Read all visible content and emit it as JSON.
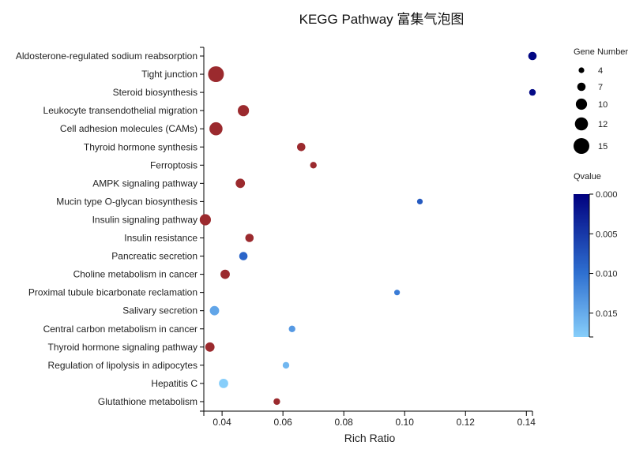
{
  "chart_data": {
    "type": "scatter",
    "title": "KEGG Pathway 富集气泡图",
    "xlabel": "Rich Ratio",
    "xlim": [
      0.034,
      0.142
    ],
    "xticks": [
      0.04,
      0.06,
      0.08,
      0.1,
      0.12,
      0.14
    ],
    "xtick_labels": [
      "0.04",
      "0.06",
      "0.08",
      "0.10",
      "0.12",
      "0.14"
    ],
    "points": [
      {
        "term": "Aldosterone-regulated sodium reabsorption",
        "rich_ratio": 0.142,
        "gene_number": 7,
        "qvalue": 0.0005
      },
      {
        "term": "Tight junction",
        "rich_ratio": 0.038,
        "gene_number": 15,
        "qvalue": 0.045
      },
      {
        "term": "Steroid biosynthesis",
        "rich_ratio": 0.142,
        "gene_number": 5,
        "qvalue": 0.001
      },
      {
        "term": "Leukocyte transendothelial migration",
        "rich_ratio": 0.047,
        "gene_number": 10,
        "qvalue": 0.045
      },
      {
        "term": "Cell adhesion molecules (CAMs)",
        "rich_ratio": 0.038,
        "gene_number": 12,
        "qvalue": 0.045
      },
      {
        "term": "Thyroid hormone synthesis",
        "rich_ratio": 0.066,
        "gene_number": 7,
        "qvalue": 0.045
      },
      {
        "term": "Ferroptosis",
        "rich_ratio": 0.07,
        "gene_number": 5,
        "qvalue": 0.045
      },
      {
        "term": "AMPK signaling pathway",
        "rich_ratio": 0.046,
        "gene_number": 8,
        "qvalue": 0.045
      },
      {
        "term": "Mucin type O-glycan biosynthesis",
        "rich_ratio": 0.105,
        "gene_number": 4,
        "qvalue": 0.008
      },
      {
        "term": "Insulin signaling pathway",
        "rich_ratio": 0.0345,
        "gene_number": 10,
        "qvalue": 0.045
      },
      {
        "term": "Insulin resistance",
        "rich_ratio": 0.049,
        "gene_number": 7,
        "qvalue": 0.045
      },
      {
        "term": "Pancreatic secretion",
        "rich_ratio": 0.047,
        "gene_number": 7,
        "qvalue": 0.009
      },
      {
        "term": "Choline metabolism in cancer",
        "rich_ratio": 0.041,
        "gene_number": 8,
        "qvalue": 0.045
      },
      {
        "term": "Proximal tubule bicarbonate reclamation",
        "rich_ratio": 0.0975,
        "gene_number": 4,
        "qvalue": 0.011
      },
      {
        "term": "Salivary secretion",
        "rich_ratio": 0.0375,
        "gene_number": 8,
        "qvalue": 0.0145
      },
      {
        "term": "Central carbon metabolism in cancer",
        "rich_ratio": 0.063,
        "gene_number": 5,
        "qvalue": 0.0135
      },
      {
        "term": "Thyroid hormone signaling pathway",
        "rich_ratio": 0.036,
        "gene_number": 8,
        "qvalue": 0.045
      },
      {
        "term": "Regulation of lipolysis in adipocytes",
        "rich_ratio": 0.061,
        "gene_number": 5,
        "qvalue": 0.016
      },
      {
        "term": "Hepatitis C",
        "rich_ratio": 0.0405,
        "gene_number": 8,
        "qvalue": 0.018
      },
      {
        "term": "Glutathione metabolism",
        "rich_ratio": 0.058,
        "gene_number": 5,
        "qvalue": 0.045
      }
    ],
    "size_legend": {
      "title": "Gene Number",
      "entries": [
        {
          "label": "4",
          "value": 4
        },
        {
          "label": "7",
          "value": 7
        },
        {
          "label": "10",
          "value": 10
        },
        {
          "label": "12",
          "value": 12
        },
        {
          "label": "15",
          "value": 15
        }
      ]
    },
    "color_legend": {
      "title": "Qvalue",
      "range": [
        0.0,
        0.018
      ],
      "ticks": [
        {
          "label": "0.000",
          "value": 0.0
        },
        {
          "label": "0.005",
          "value": 0.005
        },
        {
          "label": "0.010",
          "value": 0.01
        },
        {
          "label": "0.015",
          "value": 0.015
        }
      ],
      "low_color": "#00007f",
      "mid_color": "#2e6fd0",
      "high_color": "#87cefa",
      "above_range_color": "#9b2a2e"
    },
    "grid": false
  }
}
